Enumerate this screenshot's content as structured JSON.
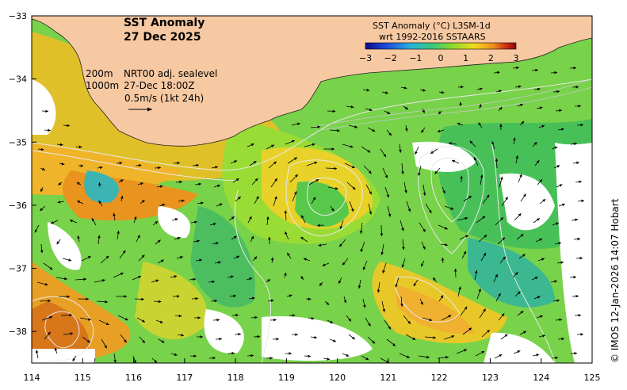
{
  "title": {
    "line1": "SST Anomaly",
    "line2": "27 Dec 2025"
  },
  "annotations": {
    "depth_200": "200m",
    "depth_1000": "1000m",
    "product": "NRT00 adj. sealevel",
    "time": "27-Dec 18:00Z",
    "vector_scale": "0.5m/s (1kt 24h)"
  },
  "legend": {
    "title": "SST Anomaly (°C) L3SM-1d",
    "subtitle": "wrt 1992-2016 SSTAARS",
    "ticks": [
      "−3",
      "−2",
      "−1",
      "0",
      "1",
      "2",
      "3"
    ],
    "colors": [
      "#0a0a8c",
      "#1e50dc",
      "#28b4dc",
      "#3cc878",
      "#8cdc28",
      "#f0dc1e",
      "#f08c1e",
      "#c82814",
      "#8c0a0a"
    ]
  },
  "axes": {
    "x_ticks": [
      "114",
      "115",
      "116",
      "117",
      "118",
      "119",
      "120",
      "121",
      "122",
      "123",
      "124",
      "125"
    ],
    "y_ticks": [
      "−33",
      "−34",
      "−35",
      "−36",
      "−37",
      "−38"
    ],
    "lon_range": [
      114,
      125
    ],
    "lat_range": [
      -38.5,
      -33
    ]
  },
  "credit": "© IMOS 12-Jan-2026 14:07 Hobart",
  "colors": {
    "land": "#f7c9a2",
    "missing": "#ffffff",
    "contour": "#e8e8e8",
    "arrow": "#000000"
  }
}
